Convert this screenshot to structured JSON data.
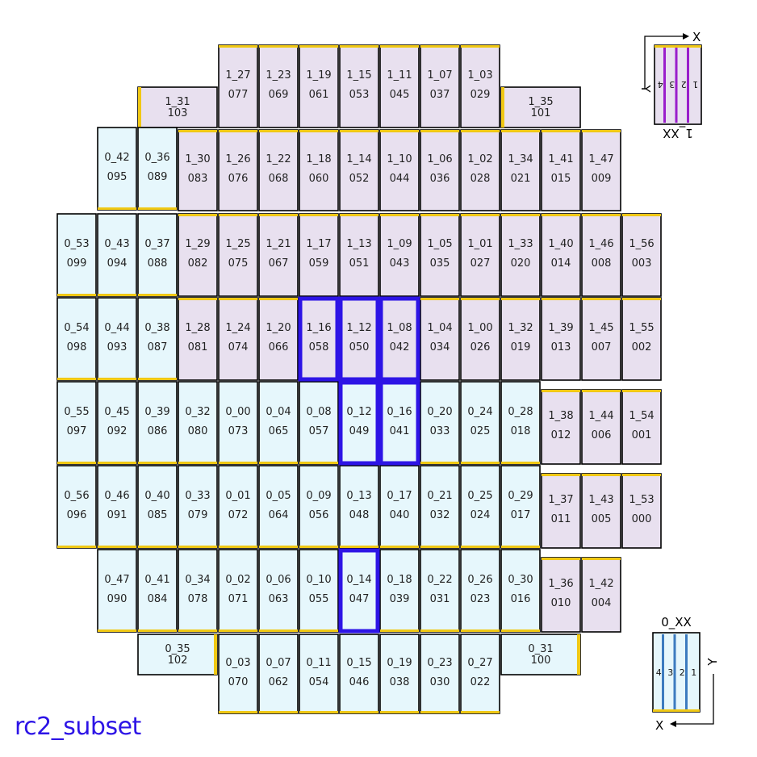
{
  "caption": "rc2_subset",
  "colors": {
    "type0_fill": "#e6f7fc",
    "type1_fill": "#e8e0ef",
    "amp_edge": "#f0c814",
    "outline": "#000000",
    "highlight": "#2d14e6",
    "legend0_stripe": "#3c7bbf",
    "legend1_stripe": "#9a1ecb"
  },
  "legend_top": {
    "axis_x": "X",
    "axis_y": "Y",
    "label": "1_XX",
    "amps": [
      "1",
      "2",
      "3",
      "4"
    ]
  },
  "legend_bottom": {
    "axis_x": "X",
    "axis_y": "Y",
    "label": "0_XX",
    "amps": [
      "4",
      "3",
      "2",
      "1"
    ]
  },
  "rows": [
    {
      "row": 0,
      "ccds": [
        {
          "name": "1_31",
          "id": "103",
          "type": 1,
          "orient": "wide"
        },
        {
          "name": "1_27",
          "id": "077",
          "type": 1
        },
        {
          "name": "1_23",
          "id": "069",
          "type": 1
        },
        {
          "name": "1_19",
          "id": "061",
          "type": 1
        },
        {
          "name": "1_15",
          "id": "053",
          "type": 1
        },
        {
          "name": "1_11",
          "id": "045",
          "type": 1
        },
        {
          "name": "1_07",
          "id": "037",
          "type": 1
        },
        {
          "name": "1_03",
          "id": "029",
          "type": 1
        },
        {
          "name": "1_35",
          "id": "101",
          "type": 1,
          "orient": "wide"
        }
      ]
    },
    {
      "row": 1,
      "ccds": [
        {
          "name": "0_42",
          "id": "095",
          "type": 0
        },
        {
          "name": "0_36",
          "id": "089",
          "type": 0
        },
        {
          "name": "1_30",
          "id": "083",
          "type": 1
        },
        {
          "name": "1_26",
          "id": "076",
          "type": 1
        },
        {
          "name": "1_22",
          "id": "068",
          "type": 1
        },
        {
          "name": "1_18",
          "id": "060",
          "type": 1
        },
        {
          "name": "1_14",
          "id": "052",
          "type": 1
        },
        {
          "name": "1_10",
          "id": "044",
          "type": 1
        },
        {
          "name": "1_06",
          "id": "036",
          "type": 1
        },
        {
          "name": "1_02",
          "id": "028",
          "type": 1
        },
        {
          "name": "1_34",
          "id": "021",
          "type": 1
        },
        {
          "name": "1_41",
          "id": "015",
          "type": 1
        },
        {
          "name": "1_47",
          "id": "009",
          "type": 1
        }
      ]
    },
    {
      "row": 2,
      "ccds": [
        {
          "name": "0_53",
          "id": "099",
          "type": 0
        },
        {
          "name": "0_43",
          "id": "094",
          "type": 0
        },
        {
          "name": "0_37",
          "id": "088",
          "type": 0
        },
        {
          "name": "1_29",
          "id": "082",
          "type": 1
        },
        {
          "name": "1_25",
          "id": "075",
          "type": 1
        },
        {
          "name": "1_21",
          "id": "067",
          "type": 1
        },
        {
          "name": "1_17",
          "id": "059",
          "type": 1
        },
        {
          "name": "1_13",
          "id": "051",
          "type": 1
        },
        {
          "name": "1_09",
          "id": "043",
          "type": 1
        },
        {
          "name": "1_05",
          "id": "035",
          "type": 1
        },
        {
          "name": "1_01",
          "id": "027",
          "type": 1
        },
        {
          "name": "1_33",
          "id": "020",
          "type": 1
        },
        {
          "name": "1_40",
          "id": "014",
          "type": 1
        },
        {
          "name": "1_46",
          "id": "008",
          "type": 1
        },
        {
          "name": "1_56",
          "id": "003",
          "type": 1
        }
      ]
    },
    {
      "row": 3,
      "ccds": [
        {
          "name": "0_54",
          "id": "098",
          "type": 0
        },
        {
          "name": "0_44",
          "id": "093",
          "type": 0
        },
        {
          "name": "0_38",
          "id": "087",
          "type": 0
        },
        {
          "name": "1_28",
          "id": "081",
          "type": 1
        },
        {
          "name": "1_24",
          "id": "074",
          "type": 1
        },
        {
          "name": "1_20",
          "id": "066",
          "type": 1
        },
        {
          "name": "1_16",
          "id": "058",
          "type": 1,
          "selected": true
        },
        {
          "name": "1_12",
          "id": "050",
          "type": 1,
          "selected": true
        },
        {
          "name": "1_08",
          "id": "042",
          "type": 1,
          "selected": true
        },
        {
          "name": "1_04",
          "id": "034",
          "type": 1
        },
        {
          "name": "1_00",
          "id": "026",
          "type": 1
        },
        {
          "name": "1_32",
          "id": "019",
          "type": 1
        },
        {
          "name": "1_39",
          "id": "013",
          "type": 1
        },
        {
          "name": "1_45",
          "id": "007",
          "type": 1
        },
        {
          "name": "1_55",
          "id": "002",
          "type": 1
        }
      ]
    },
    {
      "row": 4,
      "ccds": [
        {
          "name": "0_55",
          "id": "097",
          "type": 0
        },
        {
          "name": "0_45",
          "id": "092",
          "type": 0
        },
        {
          "name": "0_39",
          "id": "086",
          "type": 0
        },
        {
          "name": "0_32",
          "id": "080",
          "type": 0
        },
        {
          "name": "0_00",
          "id": "073",
          "type": 0
        },
        {
          "name": "0_04",
          "id": "065",
          "type": 0
        },
        {
          "name": "0_08",
          "id": "057",
          "type": 0
        },
        {
          "name": "0_12",
          "id": "049",
          "type": 0,
          "selected": true
        },
        {
          "name": "0_16",
          "id": "041",
          "type": 0,
          "selected": true
        },
        {
          "name": "0_20",
          "id": "033",
          "type": 0
        },
        {
          "name": "0_24",
          "id": "025",
          "type": 0
        },
        {
          "name": "0_28",
          "id": "018",
          "type": 0
        },
        {
          "name": "1_38",
          "id": "012",
          "type": 1
        },
        {
          "name": "1_44",
          "id": "006",
          "type": 1
        },
        {
          "name": "1_54",
          "id": "001",
          "type": 1
        }
      ]
    },
    {
      "row": 5,
      "ccds": [
        {
          "name": "0_56",
          "id": "096",
          "type": 0
        },
        {
          "name": "0_46",
          "id": "091",
          "type": 0
        },
        {
          "name": "0_40",
          "id": "085",
          "type": 0
        },
        {
          "name": "0_33",
          "id": "079",
          "type": 0
        },
        {
          "name": "0_01",
          "id": "072",
          "type": 0
        },
        {
          "name": "0_05",
          "id": "064",
          "type": 0
        },
        {
          "name": "0_09",
          "id": "056",
          "type": 0
        },
        {
          "name": "0_13",
          "id": "048",
          "type": 0
        },
        {
          "name": "0_17",
          "id": "040",
          "type": 0
        },
        {
          "name": "0_21",
          "id": "032",
          "type": 0
        },
        {
          "name": "0_25",
          "id": "024",
          "type": 0
        },
        {
          "name": "0_29",
          "id": "017",
          "type": 0
        },
        {
          "name": "1_37",
          "id": "011",
          "type": 1
        },
        {
          "name": "1_43",
          "id": "005",
          "type": 1
        },
        {
          "name": "1_53",
          "id": "000",
          "type": 1
        }
      ]
    },
    {
      "row": 6,
      "ccds": [
        {
          "name": "0_47",
          "id": "090",
          "type": 0
        },
        {
          "name": "0_41",
          "id": "084",
          "type": 0
        },
        {
          "name": "0_34",
          "id": "078",
          "type": 0
        },
        {
          "name": "0_02",
          "id": "071",
          "type": 0
        },
        {
          "name": "0_06",
          "id": "063",
          "type": 0
        },
        {
          "name": "0_10",
          "id": "055",
          "type": 0
        },
        {
          "name": "0_14",
          "id": "047",
          "type": 0,
          "selected": true
        },
        {
          "name": "0_18",
          "id": "039",
          "type": 0
        },
        {
          "name": "0_22",
          "id": "031",
          "type": 0
        },
        {
          "name": "0_26",
          "id": "023",
          "type": 0
        },
        {
          "name": "0_30",
          "id": "016",
          "type": 0
        },
        {
          "name": "1_36",
          "id": "010",
          "type": 1
        },
        {
          "name": "1_42",
          "id": "004",
          "type": 1
        }
      ]
    },
    {
      "row": 7,
      "ccds": [
        {
          "name": "0_35",
          "id": "102",
          "type": 0,
          "orient": "wide"
        },
        {
          "name": "0_03",
          "id": "070",
          "type": 0
        },
        {
          "name": "0_07",
          "id": "062",
          "type": 0
        },
        {
          "name": "0_11",
          "id": "054",
          "type": 0
        },
        {
          "name": "0_15",
          "id": "046",
          "type": 0
        },
        {
          "name": "0_19",
          "id": "038",
          "type": 0
        },
        {
          "name": "0_23",
          "id": "030",
          "type": 0
        },
        {
          "name": "0_27",
          "id": "022",
          "type": 0
        },
        {
          "name": "0_31",
          "id": "100",
          "type": 0,
          "orient": "wide"
        }
      ]
    }
  ]
}
